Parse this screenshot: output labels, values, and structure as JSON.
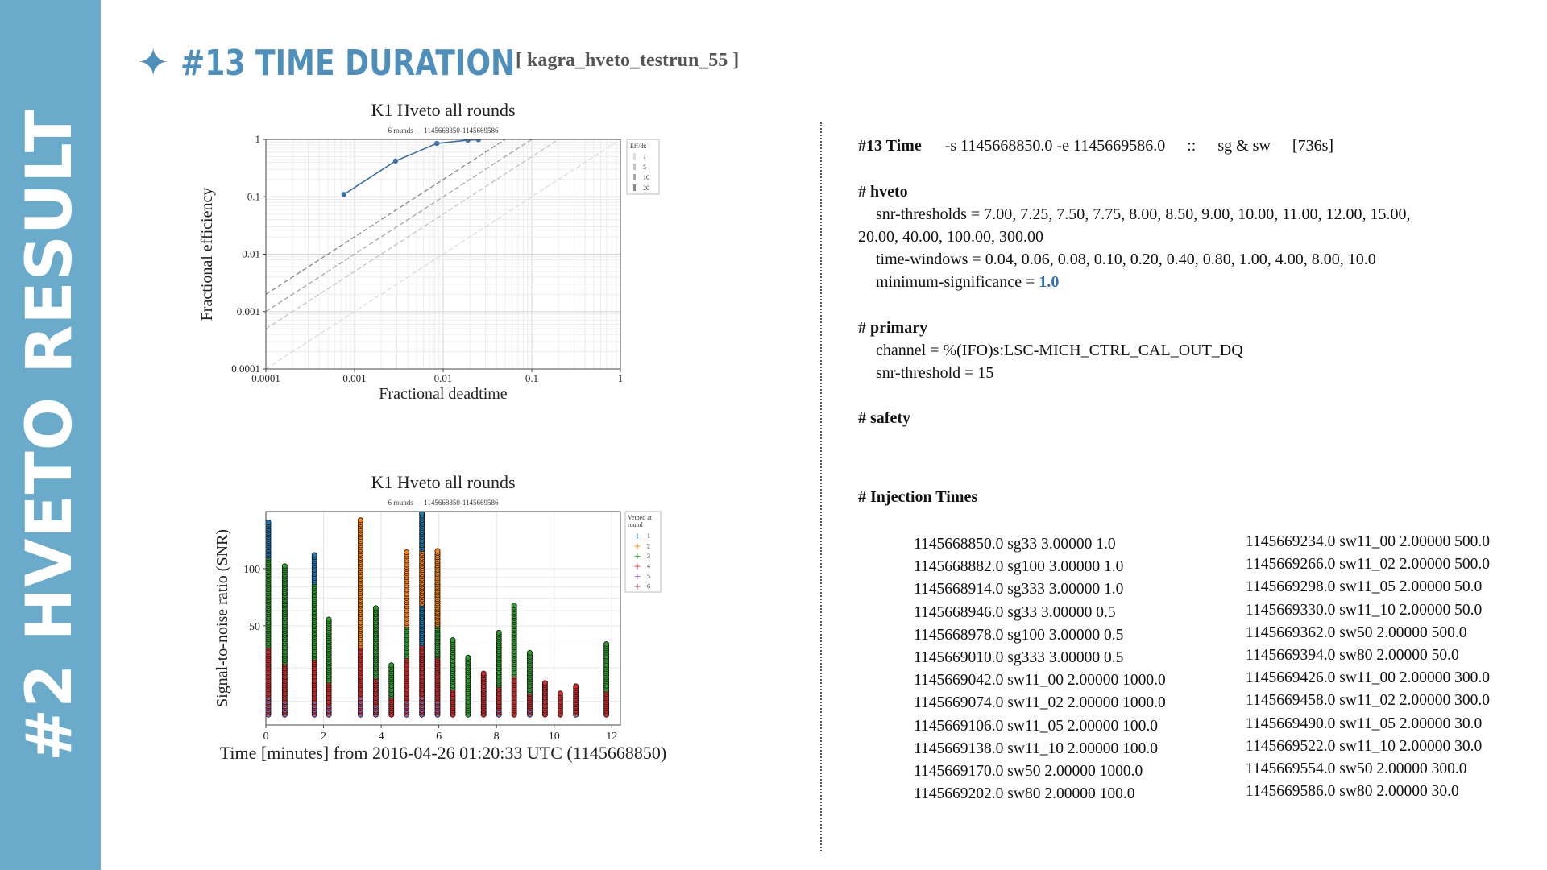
{
  "sidebar": {
    "label": "#2 HVETO RESULT"
  },
  "header": {
    "star": "✦",
    "title": "#13 TIME DURATION",
    "subtitle": "[ kagra_hveto_testrun_55 ]"
  },
  "colors": {
    "accent": "#4f8fbc",
    "sidebar": "#6aaacb",
    "link_value": "#2f6fae"
  },
  "chart_data": [
    {
      "type": "line",
      "title": "K1 Hveto all rounds",
      "subtitle": "6 rounds — 1145668850-1145669586",
      "xlabel": "Fractional deadtime",
      "ylabel": "Fractional efficiency",
      "xscale": "log",
      "yscale": "log",
      "xlim": [
        0.0001,
        1
      ],
      "ylim": [
        0.0001,
        1
      ],
      "xticks": [
        "0.0001",
        "0.001",
        "0.01",
        "0.1",
        "1"
      ],
      "yticks": [
        "0.0001",
        "0.001",
        "0.01",
        "0.1",
        "1"
      ],
      "grid": true,
      "legend_title": "Eff/dt:",
      "legend_position": "top-right outside",
      "reference_lines": [
        {
          "label": "1",
          "ratio": 1,
          "color": "#dddddd"
        },
        {
          "label": "5",
          "ratio": 5,
          "color": "#c4c4c4"
        },
        {
          "label": "10",
          "ratio": 10,
          "color": "#a8a8a8"
        },
        {
          "label": "20",
          "ratio": 20,
          "color": "#888888"
        }
      ],
      "series": [
        {
          "color": "#3d6fa6",
          "x": [
            0.00076,
            0.0029,
            0.0085,
            0.019,
            0.025
          ],
          "y": [
            0.11,
            0.42,
            0.85,
            0.97,
            0.99
          ]
        }
      ]
    },
    {
      "type": "scatter",
      "title": "K1 Hveto all rounds",
      "subtitle": "6 rounds — 1145668850-1145669586",
      "xlabel": "Time [minutes] from 2016-04-26 01:20:33 UTC (1145668850)",
      "ylabel": "Signal-to-noise ratio (SNR)",
      "xlim": [
        0,
        12.3
      ],
      "xticks": [
        "0",
        "2",
        "4",
        "6",
        "8",
        "10",
        "12"
      ],
      "yscale": "log",
      "ylim": [
        15,
        200
      ],
      "yticks": [
        "50",
        "100"
      ],
      "grid": true,
      "legend_title": "Vetoed at round",
      "legend_position": "top-right outside",
      "legend": [
        {
          "label": "1",
          "color": "#1f77b4"
        },
        {
          "label": "2",
          "color": "#ff7f0e"
        },
        {
          "label": "3",
          "color": "#2ca02c"
        },
        {
          "label": "4",
          "color": "#d62728"
        },
        {
          "label": "5",
          "color": "#9467bd"
        },
        {
          "label": "6",
          "color": "#8c564b"
        }
      ],
      "columns": [
        {
          "t": 0.0,
          "max_snr": 175,
          "rounds": [
            1,
            3,
            4,
            5
          ]
        },
        {
          "t": 0.57,
          "max_snr": 103,
          "rounds": [
            3,
            4,
            5
          ]
        },
        {
          "t": 1.6,
          "max_snr": 118,
          "rounds": [
            1,
            3,
            4,
            5
          ]
        },
        {
          "t": 2.1,
          "max_snr": 54,
          "rounds": [
            3,
            4,
            5
          ]
        },
        {
          "t": 3.2,
          "max_snr": 180,
          "rounds": [
            2,
            4,
            5
          ]
        },
        {
          "t": 3.73,
          "max_snr": 62,
          "rounds": [
            3,
            4,
            5
          ]
        },
        {
          "t": 4.27,
          "max_snr": 31,
          "rounds": [
            3,
            4
          ]
        },
        {
          "t": 4.8,
          "max_snr": 122,
          "rounds": [
            2,
            3,
            4,
            5
          ]
        },
        {
          "t": 5.33,
          "max_snr": 195,
          "rounds": [
            1,
            2,
            4,
            5
          ]
        },
        {
          "t": 5.87,
          "max_snr": 124,
          "rounds": [
            2,
            3,
            4,
            5
          ]
        },
        {
          "t": 6.4,
          "max_snr": 42,
          "rounds": [
            3,
            4
          ]
        },
        {
          "t": 6.93,
          "max_snr": 34,
          "rounds": [
            3
          ]
        },
        {
          "t": 7.47,
          "max_snr": 28,
          "rounds": [
            4
          ]
        },
        {
          "t": 8.0,
          "max_snr": 46,
          "rounds": [
            3,
            4,
            5
          ]
        },
        {
          "t": 8.53,
          "max_snr": 64,
          "rounds": [
            3,
            4
          ]
        },
        {
          "t": 9.07,
          "max_snr": 36,
          "rounds": [
            3,
            4,
            5
          ]
        },
        {
          "t": 9.6,
          "max_snr": 25,
          "rounds": [
            4
          ]
        },
        {
          "t": 10.13,
          "max_snr": 22,
          "rounds": [
            4
          ]
        },
        {
          "t": 10.67,
          "max_snr": 24,
          "rounds": [
            4,
            5
          ]
        },
        {
          "t": 11.73,
          "max_snr": 40,
          "rounds": [
            3,
            4
          ]
        }
      ]
    }
  ],
  "config": {
    "time_line": {
      "label": "#13 Time",
      "range": "-s 1145668850.0  -e 1145669586.0",
      "sep": "::",
      "types": "sg & sw",
      "duration": "[736s]"
    },
    "hveto_header": "# hveto",
    "snr_thresholds_1": "snr-thresholds = 7.00, 7.25, 7.50, 7.75, 8.00, 8.50, 9.00, 10.00, 11.00, 12.00, 15.00,",
    "snr_thresholds_2": "20.00, 40.00, 100.00, 300.00",
    "time_windows": "time-windows = 0.04, 0.06, 0.08, 0.10, 0.20, 0.40, 0.80, 1.00, 4.00, 8.00, 10.0",
    "min_sig_label": "minimum-significance = ",
    "min_sig_value": "1.0",
    "primary_header": "# primary",
    "channel": "channel = %(IFO)s:LSC-MICH_CTRL_CAL_OUT_DQ",
    "snr_threshold": "snr-threshold = 15",
    "safety_header": "# safety",
    "injection_header": "# Injection Times"
  },
  "injections_left": [
    "1145668850.0 sg33 3.00000 1.0",
    "1145668882.0 sg100 3.00000 1.0",
    "1145668914.0 sg333 3.00000 1.0",
    "1145668946.0 sg33 3.00000 0.5",
    "1145668978.0 sg100 3.00000 0.5",
    "1145669010.0 sg333 3.00000 0.5",
    "1145669042.0 sw11_00 2.00000 1000.0",
    "1145669074.0 sw11_02 2.00000 1000.0",
    "1145669106.0 sw11_05 2.00000 100.0",
    "1145669138.0 sw11_10 2.00000 100.0",
    "1145669170.0 sw50 2.00000 1000.0",
    "1145669202.0 sw80 2.00000 100.0"
  ],
  "injections_right": [
    "1145669234.0 sw11_00 2.00000 500.0",
    "1145669266.0 sw11_02 2.00000 500.0",
    "1145669298.0 sw11_05 2.00000 50.0",
    "1145669330.0 sw11_10 2.00000 50.0",
    "1145669362.0 sw50 2.00000 500.0",
    "1145669394.0 sw80 2.00000 50.0",
    "1145669426.0 sw11_00 2.00000 300.0",
    "1145669458.0 sw11_02 2.00000 300.0",
    "1145669490.0 sw11_05 2.00000 30.0",
    "1145669522.0 sw11_10 2.00000 30.0",
    "1145669554.0 sw50 2.00000 300.0",
    "1145669586.0 sw80 2.00000 30.0"
  ]
}
